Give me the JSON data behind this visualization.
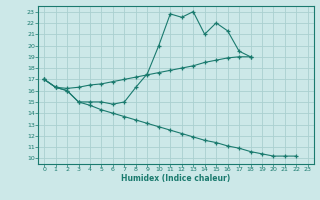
{
  "xlabel": "Humidex (Indice chaleur)",
  "bg_color": "#cce8e8",
  "grid_color": "#aad0d0",
  "line_color": "#1a7a6e",
  "xlim": [
    -0.5,
    23.5
  ],
  "ylim": [
    9.5,
    23.5
  ],
  "xticks": [
    0,
    1,
    2,
    3,
    4,
    5,
    6,
    7,
    8,
    9,
    10,
    11,
    12,
    13,
    14,
    15,
    16,
    17,
    18,
    19,
    20,
    21,
    22,
    23
  ],
  "yticks": [
    10,
    11,
    12,
    13,
    14,
    15,
    16,
    17,
    18,
    19,
    20,
    21,
    22,
    23
  ],
  "line1_x": [
    0,
    1,
    2,
    3,
    4,
    5,
    6,
    7,
    8,
    9,
    10,
    11,
    12,
    13,
    14,
    15,
    16,
    17,
    18
  ],
  "line1_y": [
    17.0,
    16.3,
    16.0,
    15.0,
    15.0,
    15.0,
    14.8,
    15.0,
    16.3,
    17.5,
    20.0,
    22.8,
    22.5,
    23.0,
    21.0,
    22.0,
    21.3,
    19.5,
    19.0
  ],
  "line2_x": [
    0,
    1,
    2,
    3,
    4,
    5,
    6,
    7,
    8,
    9,
    10,
    11,
    12,
    13,
    14,
    15,
    16,
    17,
    18
  ],
  "line2_y": [
    17.0,
    16.3,
    16.2,
    16.3,
    16.5,
    16.6,
    16.8,
    17.0,
    17.2,
    17.4,
    17.6,
    17.8,
    18.0,
    18.2,
    18.5,
    18.7,
    18.9,
    19.0,
    19.0
  ],
  "line3_x": [
    0,
    1,
    2,
    3,
    4,
    5,
    6,
    7,
    8,
    9,
    10,
    11,
    12,
    13,
    14,
    15,
    16,
    17,
    18,
    19,
    20,
    21,
    22
  ],
  "line3_y": [
    17.0,
    16.3,
    16.0,
    15.0,
    14.7,
    14.3,
    14.0,
    13.7,
    13.4,
    13.1,
    12.8,
    12.5,
    12.2,
    11.9,
    11.6,
    11.4,
    11.1,
    10.9,
    10.6,
    10.4,
    10.2,
    10.2,
    10.2
  ]
}
